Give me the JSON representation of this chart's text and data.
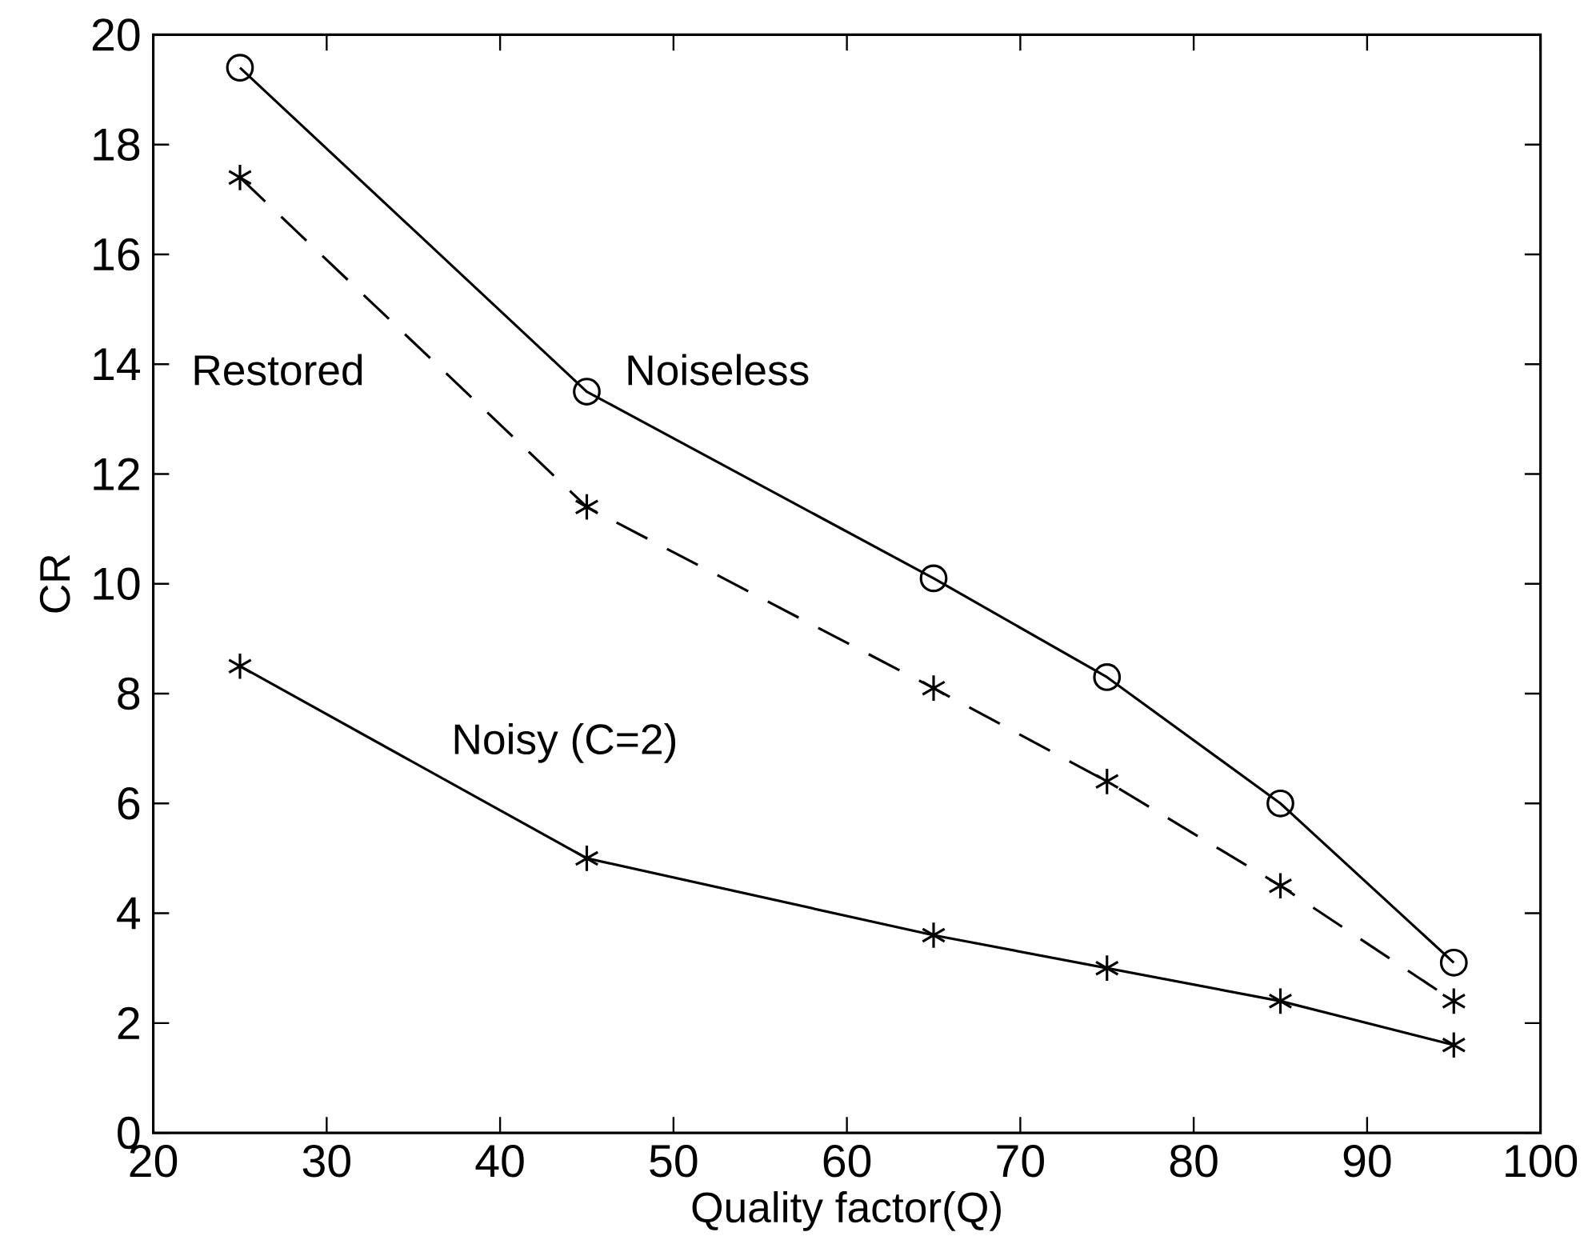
{
  "chart_data": {
    "type": "line",
    "xlabel": "Quality factor(Q)",
    "ylabel": "CR",
    "x": [
      25,
      45,
      65,
      75,
      85,
      95
    ],
    "xlim": [
      20,
      100
    ],
    "ylim": [
      0,
      20
    ],
    "xticks": [
      20,
      30,
      40,
      50,
      60,
      70,
      80,
      90,
      100
    ],
    "yticks": [
      0,
      2,
      4,
      6,
      8,
      10,
      12,
      14,
      16,
      18,
      20
    ],
    "grid": false,
    "series": [
      {
        "name": "Noiseless",
        "color": "#000000",
        "marker": "circle",
        "line_style": "solid",
        "values": [
          19.4,
          13.5,
          10.1,
          8.3,
          6.0,
          3.1
        ]
      },
      {
        "name": "Restored",
        "color": "#000000",
        "marker": "cross",
        "line_style": "dashed",
        "values": [
          17.4,
          11.4,
          8.1,
          6.4,
          4.5,
          2.4
        ]
      },
      {
        "name": "Noisy (C=2)",
        "color": "#000000",
        "marker": "cross",
        "line_style": "solid",
        "values": [
          8.5,
          5.0,
          3.6,
          3.0,
          2.4,
          1.6
        ]
      }
    ]
  }
}
